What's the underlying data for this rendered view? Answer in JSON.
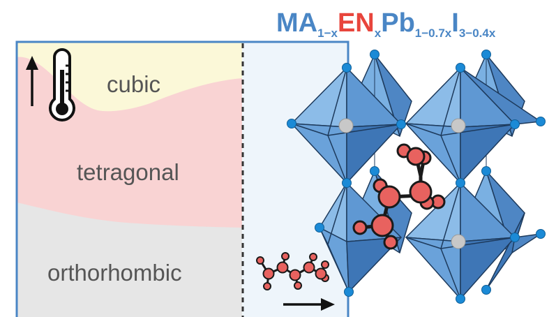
{
  "phases": {
    "cubic": "cubic",
    "tetragonal": "tetragonal",
    "orthorhombic": "orthorhombic"
  },
  "formula": {
    "ma": "MA",
    "ma_sub": "1−x",
    "en": "EN",
    "en_sub": "x",
    "pb": "Pb",
    "pb_sub": "1−0.7x",
    "i": "I",
    "i_sub": "3−0.4x"
  },
  "colors": {
    "formula_blue": "#4a86c5",
    "formula_red": "#e8453c",
    "frame_blue": "#4a86c5",
    "cubic_region": "#fbf8d8",
    "tetragonal_region": "#f9d3d3",
    "orthorhombic_region": "#e6e6e6",
    "right_panel": "#eef5fb",
    "octahedron": "#5b95d2",
    "iodide_atom": "#1b8ad6",
    "lead_atom": "#c8c8c8",
    "molecule_atom": "#e8625f"
  },
  "icons": [
    "thermometer-icon",
    "up-arrow-icon",
    "right-arrow-icon"
  ]
}
